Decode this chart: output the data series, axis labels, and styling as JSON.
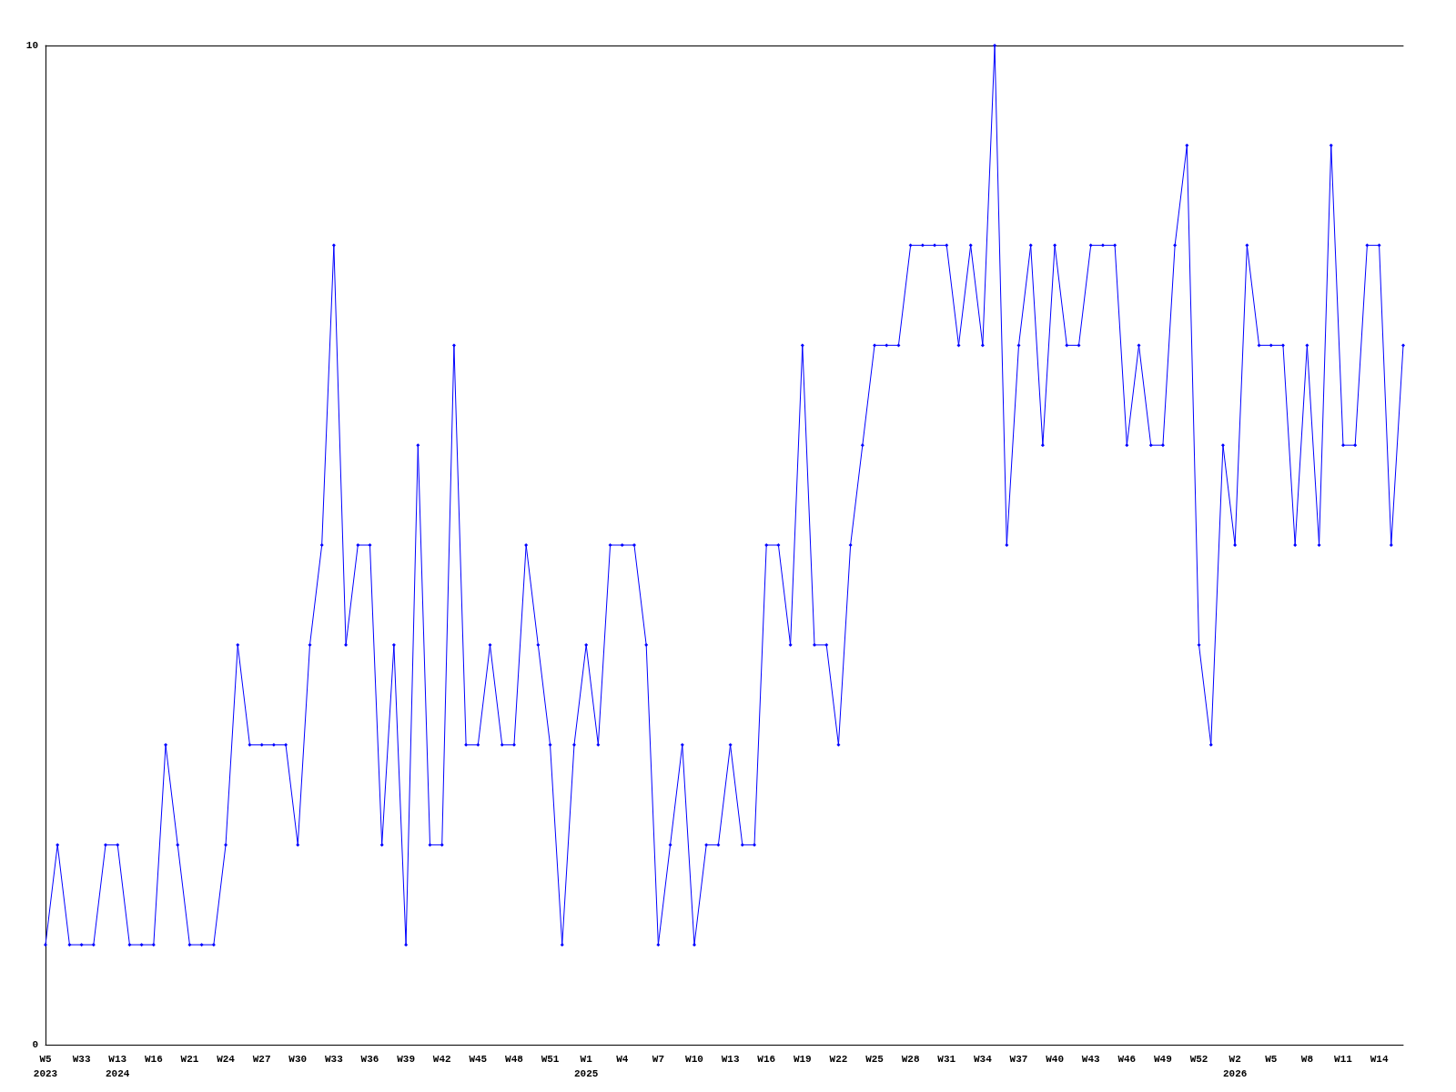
{
  "chart_data": {
    "type": "line",
    "categories": [
      "W5\n2023",
      null,
      null,
      "W33",
      null,
      null,
      "W13\n2024",
      null,
      null,
      "W16",
      null,
      null,
      "W21",
      null,
      null,
      "W24",
      null,
      null,
      "W27",
      null,
      null,
      "W30",
      null,
      null,
      "W33",
      null,
      null,
      "W36",
      null,
      null,
      "W39",
      null,
      null,
      "W42",
      null,
      null,
      "W45",
      null,
      null,
      "W48",
      null,
      null,
      "W51",
      null,
      null,
      "W1\n2025",
      null,
      null,
      "W4",
      null,
      null,
      "W7",
      null,
      null,
      "W10",
      null,
      null,
      "W13",
      null,
      null,
      "W16",
      null,
      null,
      "W19",
      null,
      null,
      "W22",
      null,
      null,
      "W25",
      null,
      null,
      "W28",
      null,
      null,
      "W31",
      null,
      null,
      "W34",
      null,
      null,
      "W37",
      null,
      null,
      "W40",
      null,
      null,
      "W43",
      null,
      null,
      "W46",
      null,
      null,
      "W49",
      null,
      null,
      "W52",
      null,
      null,
      "W2\n2026",
      null,
      null,
      "W5",
      null,
      null,
      "W8",
      null,
      null,
      "W11",
      null,
      null,
      "W14",
      null,
      null
    ],
    "series": [
      {
        "color": "#0000ff",
        "values": [
          1,
          2,
          1,
          1,
          1,
          2,
          2,
          1,
          1,
          1,
          3,
          2,
          1,
          1,
          1,
          2,
          4,
          3,
          3,
          3,
          3,
          2,
          4,
          5,
          8,
          4,
          5,
          5,
          2,
          4,
          1,
          6,
          2,
          2,
          7,
          3,
          3,
          4,
          3,
          3,
          5,
          4,
          3,
          1,
          3,
          4,
          3,
          5,
          5,
          5,
          4,
          1,
          2,
          3,
          1,
          2,
          2,
          3,
          2,
          2,
          5,
          5,
          4,
          7,
          4,
          4,
          3,
          5,
          6,
          7,
          7,
          7,
          8,
          8,
          8,
          8,
          7,
          8,
          7,
          10,
          5,
          7,
          8,
          6,
          8,
          7,
          7,
          8,
          8,
          8,
          6,
          7,
          6,
          6,
          8,
          9,
          4,
          3,
          6,
          5,
          8,
          7,
          7,
          7,
          5,
          7,
          5,
          9,
          6,
          6,
          8,
          8,
          5,
          7
        ]
      }
    ],
    "ylim": [
      0,
      10
    ],
    "yticks": [
      0,
      10
    ],
    "marker": "diamond",
    "line_style": "solid"
  }
}
